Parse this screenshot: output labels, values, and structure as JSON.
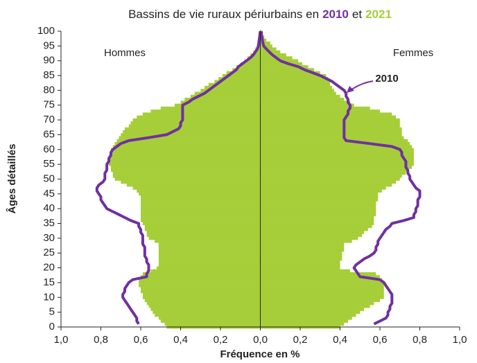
{
  "chart_data": {
    "type": "pyramid",
    "title": [
      "Bassins de vie ruraux périurbains en",
      "2010",
      "et",
      "2021"
    ],
    "ylabel": "Âges détaillés",
    "xlabel": "Fréquence en %",
    "annotations": [
      "Hommes",
      "Femmes",
      "2010"
    ],
    "xlim": [
      -1,
      1
    ],
    "xticks": [
      {
        "value": -1,
        "label": "1,0"
      },
      {
        "value": -0.8,
        "label": "0,8"
      },
      {
        "value": -0.6,
        "label": "0,6"
      },
      {
        "value": -0.4,
        "label": "0,4"
      },
      {
        "value": -0.2,
        "label": "0,2"
      },
      {
        "value": 0,
        "label": "0,0"
      },
      {
        "value": 0.2,
        "label": "0,2"
      },
      {
        "value": 0.4,
        "label": "0,4"
      },
      {
        "value": 0.6,
        "label": "0,6"
      },
      {
        "value": 0.8,
        "label": "0,8"
      },
      {
        "value": 1,
        "label": "1,0"
      }
    ],
    "ylim": [
      0,
      100
    ],
    "yticks": [
      0,
      5,
      10,
      15,
      20,
      25,
      30,
      35,
      40,
      45,
      50,
      55,
      60,
      65,
      70,
      75,
      80,
      85,
      90,
      95,
      100
    ],
    "y": [
      0,
      1,
      2,
      3,
      4,
      5,
      6,
      7,
      8,
      9,
      10,
      11,
      12,
      13,
      14,
      15,
      16,
      17,
      18,
      19,
      20,
      21,
      22,
      23,
      24,
      25,
      26,
      27,
      28,
      29,
      30,
      31,
      32,
      33,
      34,
      35,
      36,
      37,
      38,
      39,
      40,
      41,
      42,
      43,
      44,
      45,
      46,
      47,
      48,
      49,
      50,
      51,
      52,
      53,
      54,
      55,
      56,
      57,
      58,
      59,
      60,
      61,
      62,
      63,
      64,
      65,
      66,
      67,
      68,
      69,
      70,
      71,
      72,
      73,
      74,
      75,
      76,
      77,
      78,
      79,
      80,
      81,
      82,
      83,
      84,
      85,
      86,
      87,
      88,
      89,
      90,
      91,
      92,
      93,
      94,
      95,
      96,
      97,
      98,
      99,
      100
    ],
    "series": [
      {
        "mark": "bar",
        "color": "#a6ce39",
        "values": [
          -0.47,
          -0.48,
          -0.5,
          -0.51,
          -0.53,
          -0.54,
          -0.55,
          -0.56,
          -0.57,
          -0.58,
          -0.59,
          -0.59,
          -0.6,
          -0.6,
          -0.61,
          -0.61,
          -0.61,
          -0.6,
          -0.59,
          -0.55,
          -0.52,
          -0.51,
          -0.51,
          -0.51,
          -0.51,
          -0.51,
          -0.51,
          -0.51,
          -0.51,
          -0.53,
          -0.56,
          -0.57,
          -0.57,
          -0.58,
          -0.58,
          -0.59,
          -0.6,
          -0.6,
          -0.6,
          -0.6,
          -0.6,
          -0.6,
          -0.6,
          -0.6,
          -0.6,
          -0.61,
          -0.62,
          -0.64,
          -0.67,
          -0.7,
          -0.73,
          -0.74,
          -0.74,
          -0.75,
          -0.75,
          -0.76,
          -0.76,
          -0.76,
          -0.75,
          -0.75,
          -0.75,
          -0.74,
          -0.73,
          -0.72,
          -0.71,
          -0.7,
          -0.69,
          -0.68,
          -0.66,
          -0.65,
          -0.64,
          -0.62,
          -0.59,
          -0.55,
          -0.5,
          -0.43,
          -0.4,
          -0.38,
          -0.35,
          -0.33,
          -0.3,
          -0.28,
          -0.26,
          -0.23,
          -0.21,
          -0.19,
          -0.17,
          -0.14,
          -0.12,
          -0.1,
          -0.08,
          -0.065,
          -0.05,
          -0.035,
          -0.025,
          -0.017,
          -0.012,
          -0.008,
          -0.005,
          -0.003,
          -0.002
        ]
      },
      {
        "mark": "bar",
        "color": "#a6ce39",
        "values": [
          0.4,
          0.42,
          0.44,
          0.46,
          0.48,
          0.5,
          0.52,
          0.55,
          0.57,
          0.6,
          0.62,
          0.62,
          0.62,
          0.62,
          0.62,
          0.62,
          0.61,
          0.6,
          0.58,
          0.45,
          0.4,
          0.4,
          0.4,
          0.41,
          0.41,
          0.41,
          0.42,
          0.42,
          0.42,
          0.46,
          0.49,
          0.51,
          0.52,
          0.54,
          0.56,
          0.57,
          0.57,
          0.57,
          0.58,
          0.58,
          0.58,
          0.58,
          0.58,
          0.59,
          0.59,
          0.59,
          0.61,
          0.63,
          0.66,
          0.68,
          0.7,
          0.71,
          0.73,
          0.74,
          0.76,
          0.77,
          0.77,
          0.77,
          0.77,
          0.77,
          0.77,
          0.76,
          0.75,
          0.74,
          0.72,
          0.71,
          0.71,
          0.71,
          0.7,
          0.7,
          0.7,
          0.68,
          0.66,
          0.6,
          0.55,
          0.47,
          0.45,
          0.42,
          0.4,
          0.38,
          0.37,
          0.36,
          0.35,
          0.35,
          0.34,
          0.33,
          0.3,
          0.27,
          0.24,
          0.21,
          0.19,
          0.16,
          0.13,
          0.1,
          0.08,
          0.06,
          0.05,
          0.03,
          0.02,
          0.01,
          0.005
        ]
      },
      {
        "mark": "line",
        "color": "#7030a0",
        "values": [
          null,
          -0.61,
          -0.62,
          -0.62,
          -0.63,
          -0.64,
          -0.65,
          -0.66,
          -0.67,
          -0.68,
          -0.69,
          -0.69,
          -0.68,
          -0.68,
          -0.67,
          -0.66,
          -0.64,
          -0.57,
          -0.57,
          -0.56,
          -0.56,
          -0.56,
          -0.57,
          -0.57,
          -0.58,
          -0.58,
          -0.58,
          -0.58,
          -0.59,
          -0.59,
          -0.59,
          -0.59,
          -0.6,
          -0.6,
          -0.61,
          -0.61,
          -0.65,
          -0.68,
          -0.71,
          -0.74,
          -0.77,
          -0.78,
          -0.79,
          -0.8,
          -0.8,
          -0.81,
          -0.82,
          -0.82,
          -0.81,
          -0.79,
          -0.78,
          -0.78,
          -0.78,
          -0.77,
          -0.77,
          -0.77,
          -0.76,
          -0.76,
          -0.75,
          -0.75,
          -0.74,
          -0.72,
          -0.7,
          -0.66,
          -0.56,
          -0.47,
          -0.44,
          -0.41,
          -0.4,
          -0.4,
          -0.39,
          -0.39,
          -0.39,
          -0.39,
          -0.39,
          -0.39,
          -0.36,
          -0.34,
          -0.31,
          -0.28,
          -0.26,
          -0.24,
          -0.22,
          -0.2,
          -0.18,
          -0.16,
          -0.14,
          -0.12,
          -0.11,
          -0.09,
          -0.07,
          -0.05,
          -0.035,
          -0.025,
          -0.015,
          -0.01,
          -0.008,
          -0.006,
          -0.004,
          -0.002,
          0
        ]
      },
      {
        "mark": "line",
        "color": "#7030a0",
        "values": [
          null,
          0.57,
          0.6,
          0.63,
          0.64,
          0.64,
          0.65,
          0.65,
          0.66,
          0.66,
          0.66,
          0.66,
          0.65,
          0.64,
          0.63,
          0.62,
          0.6,
          0.5,
          0.49,
          0.48,
          0.47,
          0.48,
          0.5,
          0.52,
          0.55,
          0.57,
          0.58,
          0.58,
          0.59,
          0.59,
          0.6,
          0.61,
          0.62,
          0.63,
          0.65,
          0.66,
          0.72,
          0.77,
          0.77,
          0.78,
          0.78,
          0.79,
          0.79,
          0.79,
          0.8,
          0.8,
          0.8,
          0.78,
          0.77,
          0.76,
          0.75,
          0.75,
          0.74,
          0.74,
          0.73,
          0.73,
          0.73,
          0.72,
          0.71,
          0.71,
          0.7,
          0.66,
          0.55,
          0.43,
          0.42,
          0.42,
          0.42,
          0.42,
          0.42,
          0.42,
          0.42,
          0.43,
          0.44,
          0.44,
          0.45,
          0.45,
          0.44,
          0.44,
          0.43,
          0.43,
          0.42,
          0.4,
          0.38,
          0.36,
          0.33,
          0.3,
          0.26,
          0.22,
          0.19,
          0.14,
          0.1,
          0.08,
          0.06,
          0.045,
          0.03,
          0.017,
          0.013,
          0.01,
          0.008,
          0.006,
          0.005
        ]
      }
    ]
  }
}
